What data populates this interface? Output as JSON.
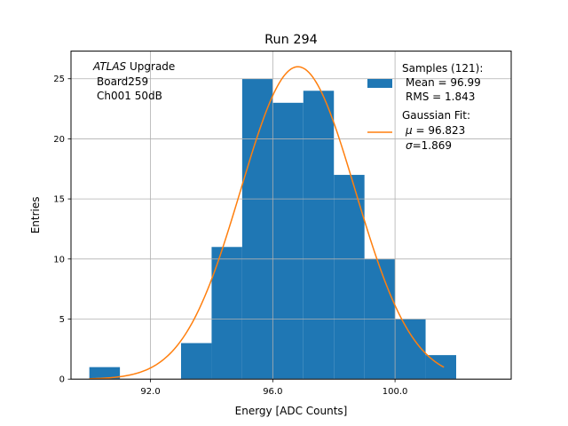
{
  "chart_data": {
    "type": "bar",
    "title": "Run 294",
    "xlabel": "Energy [ADC Counts]",
    "ylabel": "Entries",
    "xlim": [
      89.4,
      103.8
    ],
    "ylim": [
      0,
      27.3
    ],
    "grid": true,
    "bin_width": 1.0,
    "bins": [
      {
        "left": 90,
        "count": 1
      },
      {
        "left": 93,
        "count": 3
      },
      {
        "left": 94,
        "count": 11
      },
      {
        "left": 95,
        "count": 25
      },
      {
        "left": 96,
        "count": 23
      },
      {
        "left": 97,
        "count": 24
      },
      {
        "left": 98,
        "count": 17
      },
      {
        "left": 99,
        "count": 10
      },
      {
        "left": 100,
        "count": 5
      },
      {
        "left": 101,
        "count": 2
      }
    ],
    "x_ticks": [
      92,
      96,
      100
    ],
    "x_tick_labels": [
      "92.0",
      "96.0",
      "100.0"
    ],
    "y_ticks": [
      0,
      5,
      10,
      15,
      20,
      25
    ],
    "y_tick_labels": [
      "0",
      "5",
      "10",
      "15",
      "20",
      "25"
    ],
    "fit": {
      "name": "Gaussian Fit",
      "mu": 96.823,
      "sigma": 1.869,
      "amplitude": 26,
      "x_range": [
        90,
        101.6
      ]
    },
    "annotation": {
      "experiment": "ATLAS",
      "line1_rest": " Upgrade",
      "line2": "Board259",
      "line3": "Ch001 50dB"
    },
    "legend": {
      "placement": "top-right",
      "hist_title": "Samples (121):",
      "hist_mean": "Mean = 96.99",
      "hist_rms": "RMS = 1.843",
      "fit_title": "Gaussian Fit:",
      "fit_mu_symbol": "μ",
      "fit_mu_rest": " = 96.823",
      "fit_sigma_symbol": "σ",
      "fit_sigma_rest": "=1.869"
    },
    "colors": {
      "hist": "#1f77b4",
      "fit": "#ff7f0e",
      "grid": "#b0b0b0"
    }
  }
}
